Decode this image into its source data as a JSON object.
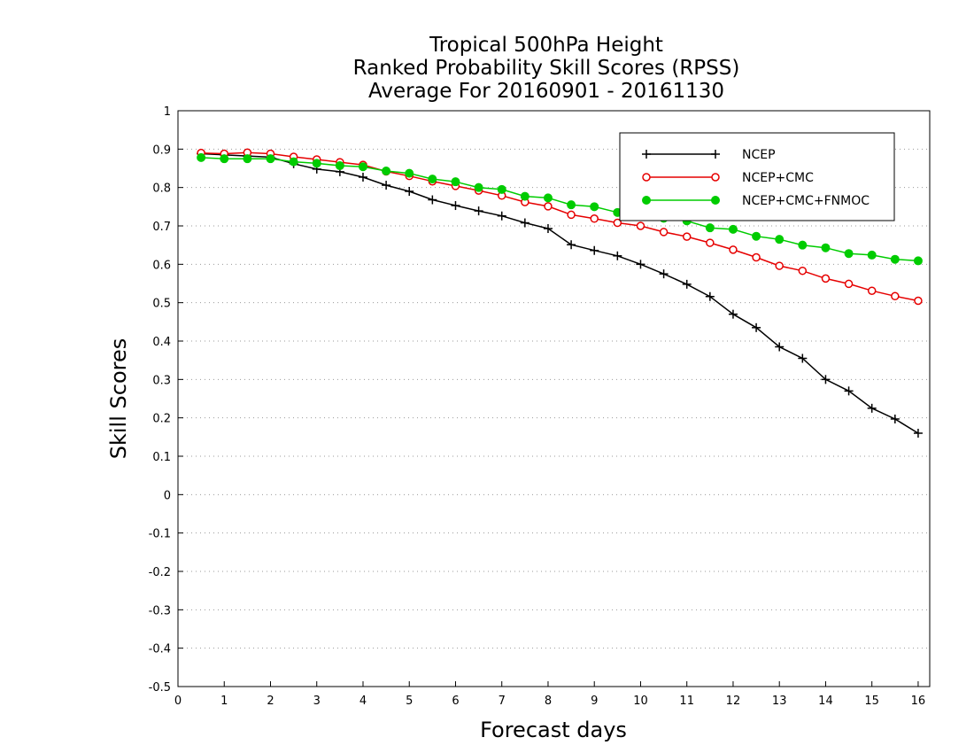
{
  "chart_data": {
    "type": "line",
    "title_lines": [
      "Tropical 500hPa Height",
      "Ranked Probability Skill Scores (RPSS)",
      "Average For 20160901 - 20161130"
    ],
    "xlabel": "Forecast days",
    "ylabel": "Skill Scores",
    "xlim": [
      0,
      16.25
    ],
    "ylim": [
      -0.5,
      1
    ],
    "x_ticks": [
      "0",
      "1",
      "2",
      "3",
      "4",
      "5",
      "6",
      "7",
      "8",
      "9",
      "10",
      "11",
      "12",
      "13",
      "14",
      "15",
      "16"
    ],
    "y_ticks": [
      "1",
      "0.9",
      "0.8",
      "0.7",
      "0.6",
      "0.5",
      "0.4",
      "0.3",
      "0.2",
      "0.1",
      "0",
      "-0.1",
      "-0.2",
      "-0.3",
      "-0.4",
      "-0.5"
    ],
    "grid": "dotted horizontal",
    "legend_position": "top-right",
    "x": [
      0.5,
      1,
      1.5,
      2,
      2.5,
      3,
      3.5,
      4,
      4.5,
      5,
      5.5,
      6,
      6.5,
      7,
      7.5,
      8,
      8.5,
      9,
      9.5,
      10,
      10.5,
      11,
      11.5,
      12,
      12.5,
      13,
      13.5,
      14,
      14.5,
      15,
      15.5,
      16
    ],
    "series": [
      {
        "name": "NCEP",
        "color": "#000000",
        "marker": "plus",
        "values": [
          0.888,
          0.885,
          0.882,
          0.879,
          0.862,
          0.848,
          0.841,
          0.827,
          0.806,
          0.79,
          0.768,
          0.753,
          0.739,
          0.726,
          0.708,
          0.693,
          0.651,
          0.636,
          0.622,
          0.6,
          0.575,
          0.548,
          0.516,
          0.47,
          0.435,
          0.385,
          0.355,
          0.3,
          0.27,
          0.225,
          0.197,
          0.16
        ]
      },
      {
        "name": "NCEP+CMC",
        "color": "#e60000",
        "marker": "open-circle",
        "values": [
          0.89,
          0.888,
          0.891,
          0.888,
          0.88,
          0.873,
          0.866,
          0.859,
          0.842,
          0.83,
          0.816,
          0.804,
          0.792,
          0.779,
          0.762,
          0.751,
          0.729,
          0.719,
          0.708,
          0.7,
          0.684,
          0.672,
          0.656,
          0.638,
          0.618,
          0.596,
          0.583,
          0.563,
          0.549,
          0.531,
          0.517,
          0.505
        ]
      },
      {
        "name": "NCEP+CMC+FNMOC",
        "color": "#00cc00",
        "marker": "filled-circle",
        "values": [
          0.878,
          0.875,
          0.875,
          0.875,
          0.867,
          0.863,
          0.857,
          0.854,
          0.843,
          0.837,
          0.822,
          0.815,
          0.8,
          0.795,
          0.777,
          0.773,
          0.755,
          0.75,
          0.735,
          0.727,
          0.72,
          0.713,
          0.695,
          0.691,
          0.673,
          0.665,
          0.65,
          0.643,
          0.628,
          0.624,
          0.613,
          0.609
        ]
      }
    ]
  }
}
